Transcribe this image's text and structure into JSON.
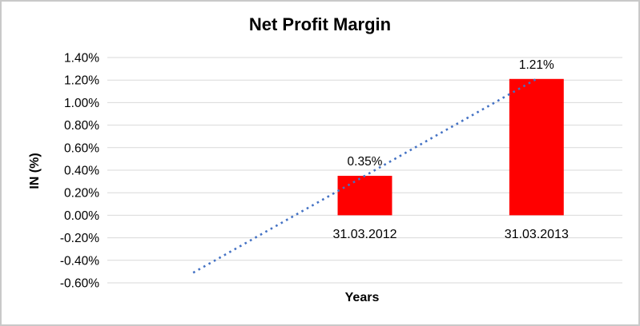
{
  "chart_data": {
    "type": "bar",
    "title": "Net Profit Margin",
    "xlabel": "Years",
    "ylabel": "IN (%)",
    "categories": [
      "31.03.2012",
      "31.03.2013"
    ],
    "values": [
      0.35,
      1.21
    ],
    "data_labels": [
      "0.35%",
      "1.21%"
    ],
    "unit": "percent",
    "ylim": [
      -0.6,
      1.4
    ],
    "ytick_step": 0.2,
    "ytick_labels": [
      "1.40%",
      "1.20%",
      "1.00%",
      "0.80%",
      "0.60%",
      "0.40%",
      "0.20%",
      "0.00%",
      "-0.20%",
      "-0.40%",
      "-0.60%"
    ],
    "grid": true,
    "legend": false,
    "trendline": {
      "type": "linear",
      "style": "dotted",
      "extends_back_periods": 1,
      "start_value": -0.51,
      "end_value": 1.21
    },
    "colors": {
      "bar": "#FF0000",
      "trendline": "#4472C4",
      "gridline": "#D9D9D9",
      "frame_border": "#C9C9C9",
      "text": "#000000"
    }
  }
}
